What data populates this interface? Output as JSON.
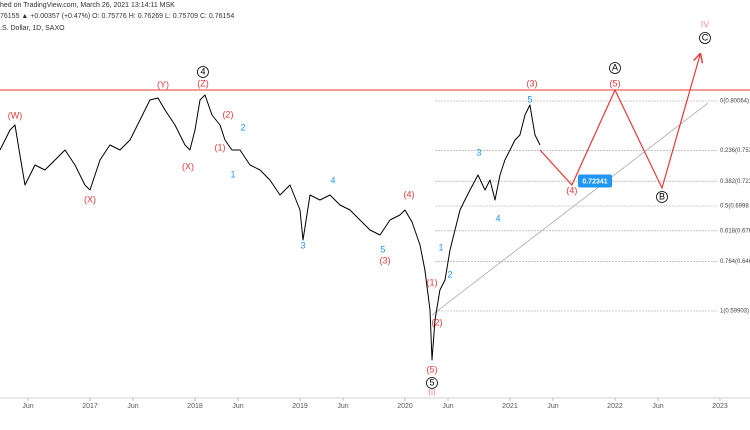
{
  "chart_data": {
    "type": "line",
    "header": [
      "hed on TradingView.com, March 26, 2021 13:14:11 MSK",
      "76155 ▲ +0.00357 (+0.47%) O: 0.75776 H: 0.76269 L: 0.75709 C: 0.76154",
      ".S. Dollar, 1D, SAXO"
    ],
    "xlim": [
      2016.143,
      2023.286
    ],
    "ylim": [
      0.5155,
      0.8976
    ],
    "xticks": [
      {
        "value": 2016.41,
        "label": "Jun"
      },
      2017,
      {
        "value": 2017.41,
        "label": "Jun"
      },
      2018,
      {
        "value": 2018.41,
        "label": "Jun"
      },
      2019,
      {
        "value": 2019.41,
        "label": "Jun"
      },
      2020,
      {
        "value": 2020.41,
        "label": "Jun"
      },
      2021,
      {
        "value": 2021.41,
        "label": "Jun"
      },
      2022,
      {
        "value": 2022.41,
        "label": "Jun"
      },
      2023
    ],
    "color": "#000000",
    "x": [
      2016.143,
      2016.238,
      2016.286,
      2016.333,
      2016.381,
      2016.476,
      2016.571,
      2016.667,
      2016.762,
      2016.857,
      2016.952,
      2017.0,
      2017.095,
      2017.19,
      2017.286,
      2017.381,
      2017.476,
      2017.571,
      2017.648,
      2017.714,
      2017.81,
      2017.905,
      2017.952,
      2018.0,
      2018.048,
      2018.095,
      2018.162,
      2018.238,
      2018.286,
      2018.352,
      2018.429,
      2018.524,
      2018.619,
      2018.714,
      2018.81,
      2018.905,
      2019.0,
      2019.029,
      2019.095,
      2019.19,
      2019.286,
      2019.381,
      2019.476,
      2019.571,
      2019.667,
      2019.762,
      2019.857,
      2019.952,
      2020.0,
      2020.067,
      2020.143,
      2020.19,
      2020.238,
      2020.257,
      2020.286,
      2020.333,
      2020.381,
      2020.429,
      2020.476,
      2020.524,
      2020.571,
      2020.619,
      2020.695,
      2020.762,
      2020.81,
      2020.857,
      2020.905,
      2020.952,
      2021.0,
      2021.048,
      2021.095,
      2021.143,
      2021.19,
      2021.238,
      2021.286
    ],
    "values": [
      0.7536,
      0.7728,
      0.7776,
      0.7488,
      0.72,
      0.7392,
      0.7344,
      0.744,
      0.7536,
      0.7392,
      0.72,
      0.7152,
      0.744,
      0.7584,
      0.7536,
      0.7632,
      0.7824,
      0.8016,
      0.8035,
      0.792,
      0.7776,
      0.7584,
      0.7536,
      0.7728,
      0.8016,
      0.8064,
      0.7872,
      0.7776,
      0.7632,
      0.7536,
      0.7536,
      0.7392,
      0.7344,
      0.7248,
      0.7104,
      0.72,
      0.696,
      0.6672,
      0.7104,
      0.7056,
      0.7104,
      0.7008,
      0.696,
      0.6864,
      0.6768,
      0.672,
      0.6864,
      0.6912,
      0.696,
      0.6845,
      0.6624,
      0.6384,
      0.6,
      0.552,
      0.5904,
      0.6192,
      0.6288,
      0.6576,
      0.6768,
      0.696,
      0.7056,
      0.7152,
      0.7296,
      0.7152,
      0.7248,
      0.7056,
      0.7296,
      0.744,
      0.7536,
      0.7632,
      0.768,
      0.7872,
      0.7968,
      0.768,
      0.7584
    ],
    "resistance": 0.8112,
    "resistance_color": "#e53935",
    "projection": {
      "color": "#e53935",
      "x": [
        2021.286,
        2021.59,
        2022.0,
        2022.448,
        2022.81
      ],
      "values": [
        0.7536,
        0.72,
        0.8112,
        0.7171,
        0.8448
      ]
    },
    "trendline": {
      "color": "#9e9e9e",
      "x": [
        2020.257,
        2022.886
      ],
      "values": [
        0.5952,
        0.7987
      ]
    },
    "fib_levels": [
      {
        "label": "0(0.80064)",
        "value": 0.80064
      },
      {
        "label": "0.236(0.753",
        "value": 0.75306
      },
      {
        "label": "0.382(0.723",
        "value": 0.72362
      },
      {
        "label": "0.5(0.6998",
        "value": 0.69984
      },
      {
        "label": "0.618(0.676",
        "value": 0.67605
      },
      {
        "label": "0.764(0.646",
        "value": 0.64661
      },
      {
        "label": "1(0.59903)",
        "value": 0.59903
      }
    ],
    "price_label": 0.72341,
    "price_label_color": "#2196f3",
    "annotations": [
      {
        "text": "(W)",
        "x": 2016.286,
        "y": 0.7862,
        "color": "#e53935"
      },
      {
        "text": "(X)",
        "x": 2017.0,
        "y": 0.7056,
        "color": "#e53935"
      },
      {
        "text": "(Y)",
        "x": 2017.695,
        "y": 0.816,
        "color": "#e53935"
      },
      {
        "text": "4",
        "x": 2018.076,
        "y": 0.8285,
        "color": "#000000",
        "circled": true
      },
      {
        "text": "(Z)",
        "x": 2018.076,
        "y": 0.817,
        "color": "#e53935"
      },
      {
        "text": "(2)",
        "x": 2018.314,
        "y": 0.7872,
        "color": "#e53935"
      },
      {
        "text": "2",
        "x": 2018.457,
        "y": 0.7747,
        "color": "#2196f3"
      },
      {
        "text": "(1)",
        "x": 2018.238,
        "y": 0.7555,
        "color": "#e53935"
      },
      {
        "text": "(X)",
        "x": 2017.933,
        "y": 0.7373,
        "color": "#e53935"
      },
      {
        "text": "1",
        "x": 2018.362,
        "y": 0.7296,
        "color": "#2196f3"
      },
      {
        "text": "4",
        "x": 2019.314,
        "y": 0.7238,
        "color": "#2196f3"
      },
      {
        "text": "3",
        "x": 2019.029,
        "y": 0.6614,
        "color": "#2196f3"
      },
      {
        "text": "(4)",
        "x": 2020.038,
        "y": 0.7104,
        "color": "#e53935"
      },
      {
        "text": "5",
        "x": 2019.79,
        "y": 0.6576,
        "color": "#2196f3"
      },
      {
        "text": "(3)",
        "x": 2019.81,
        "y": 0.647,
        "color": "#e53935"
      },
      {
        "text": "1",
        "x": 2020.343,
        "y": 0.6595,
        "color": "#2196f3"
      },
      {
        "text": "2",
        "x": 2020.429,
        "y": 0.6336,
        "color": "#2196f3"
      },
      {
        "text": "(1)",
        "x": 2020.257,
        "y": 0.626,
        "color": "#e53935"
      },
      {
        "text": "(2)",
        "x": 2020.305,
        "y": 0.5875,
        "color": "#e53935"
      },
      {
        "text": "(5)",
        "x": 2020.257,
        "y": 0.5424,
        "color": "#e53935"
      },
      {
        "text": "5",
        "x": 2020.257,
        "y": 0.5299,
        "color": "#000000",
        "circled": true
      },
      {
        "text": "III",
        "x": 2020.257,
        "y": 0.5203,
        "color": "#f48fb1"
      },
      {
        "text": "3",
        "x": 2020.705,
        "y": 0.7507,
        "color": "#2196f3"
      },
      {
        "text": "4",
        "x": 2020.886,
        "y": 0.6873,
        "color": "#2196f3"
      },
      {
        "text": "5",
        "x": 2021.19,
        "y": 0.8016,
        "color": "#2196f3"
      },
      {
        "text": "(3)",
        "x": 2021.21,
        "y": 0.817,
        "color": "#e53935"
      },
      {
        "text": "A",
        "x": 2022.0,
        "y": 0.8323,
        "color": "#000000",
        "circled": true
      },
      {
        "text": "(5)",
        "x": 2022.0,
        "y": 0.817,
        "color": "#e53935"
      },
      {
        "text": "(4)",
        "x": 2021.59,
        "y": 0.7142,
        "color": "#e53935"
      },
      {
        "text": "B",
        "x": 2022.448,
        "y": 0.7085,
        "color": "#000000",
        "circled": true
      },
      {
        "text": "C",
        "x": 2022.857,
        "y": 0.8611,
        "color": "#000000",
        "circled": true
      },
      {
        "text": "IV",
        "x": 2022.857,
        "y": 0.8736,
        "color": "#f48fb1"
      }
    ]
  }
}
